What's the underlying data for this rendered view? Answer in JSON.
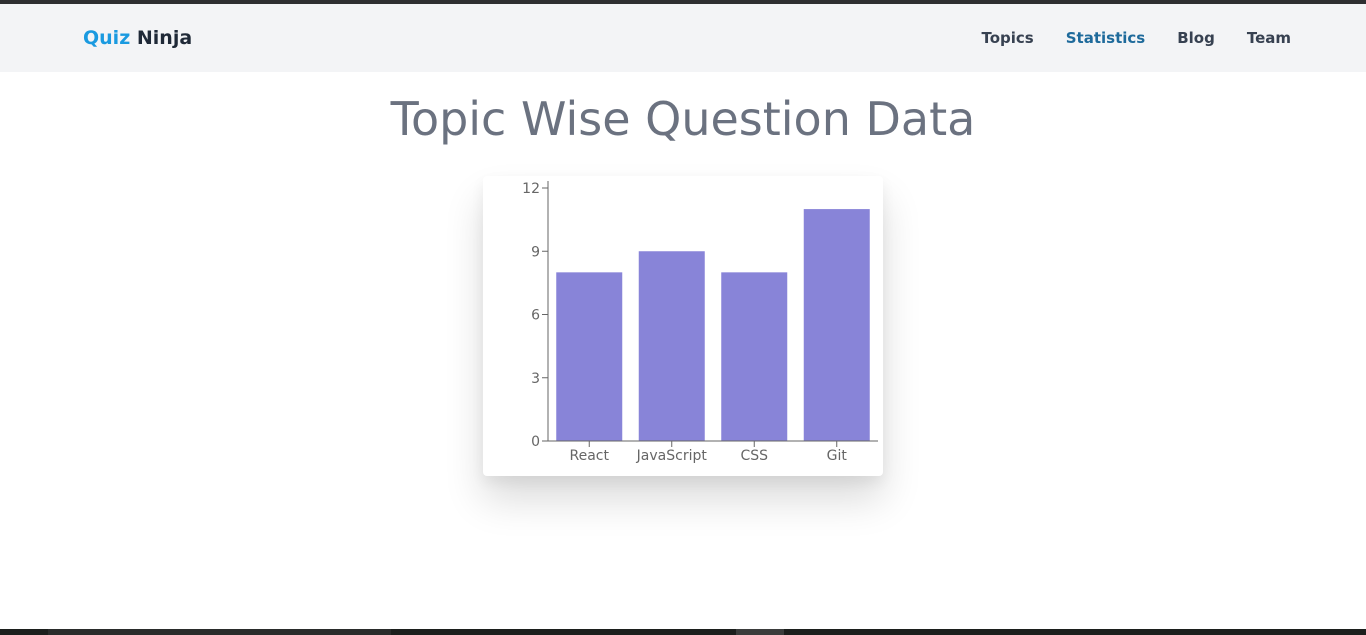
{
  "navbar": {
    "brand_part1": "Quiz",
    "brand_part2": "Ninja",
    "links": [
      {
        "label": "Topics",
        "active": false
      },
      {
        "label": "Statistics",
        "active": true
      },
      {
        "label": "Blog",
        "active": false
      },
      {
        "label": "Team",
        "active": false
      }
    ]
  },
  "page": {
    "title": "Topic Wise Question Data"
  },
  "colors": {
    "brand_accent": "#1a9ae0",
    "active_link": "#1e6a9b",
    "bar_fill": "#8884d8"
  },
  "chart_data": {
    "type": "bar",
    "categories": [
      "React",
      "JavaScript",
      "CSS",
      "Git"
    ],
    "values": [
      8,
      9,
      8,
      11
    ],
    "title": "",
    "xlabel": "",
    "ylabel": "",
    "ylim": [
      0,
      12
    ],
    "yticks": [
      0,
      3,
      6,
      9,
      12
    ],
    "grid": false,
    "legend": "none"
  }
}
